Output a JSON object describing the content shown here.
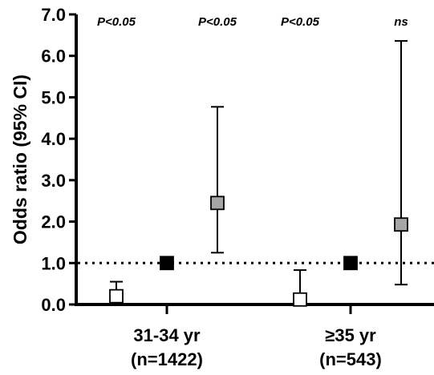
{
  "chart_data": {
    "type": "scatter",
    "title": "",
    "xlabel": "",
    "ylabel": "Odds ratio (95% CI)",
    "ylim": [
      0,
      7
    ],
    "y_ticks": [
      "0.0",
      "1.0",
      "2.0",
      "3.0",
      "4.0",
      "5.0",
      "6.0",
      "7.0"
    ],
    "reference_line": 1.0,
    "categories": [
      {
        "line1": "31-34 yr",
        "line2": "(n=1422)"
      },
      {
        "line1": "≥35 yr",
        "line2": "(n=543)"
      }
    ],
    "annotations": [
      "P<0.05",
      "P<0.05",
      "P<0.05",
      "ns"
    ],
    "marker_colors": {
      "open": "#ffffff",
      "filled": "#000000",
      "gray": "#a6a6a6"
    },
    "series": [
      {
        "marker": "open",
        "points": [
          {
            "group": 0,
            "value": 0.2,
            "ci_low": 0.05,
            "ci_high": 0.55
          },
          {
            "group": 1,
            "value": 0.12,
            "ci_low": 0.02,
            "ci_high": 0.83
          }
        ]
      },
      {
        "marker": "filled",
        "points": [
          {
            "group": 0,
            "value": 1.0
          },
          {
            "group": 1,
            "value": 1.0
          }
        ]
      },
      {
        "marker": "gray",
        "points": [
          {
            "group": 0,
            "value": 2.45,
            "ci_low": 1.25,
            "ci_high": 4.77
          },
          {
            "group": 1,
            "value": 1.93,
            "ci_low": 0.48,
            "ci_high": 6.36
          }
        ]
      }
    ]
  }
}
